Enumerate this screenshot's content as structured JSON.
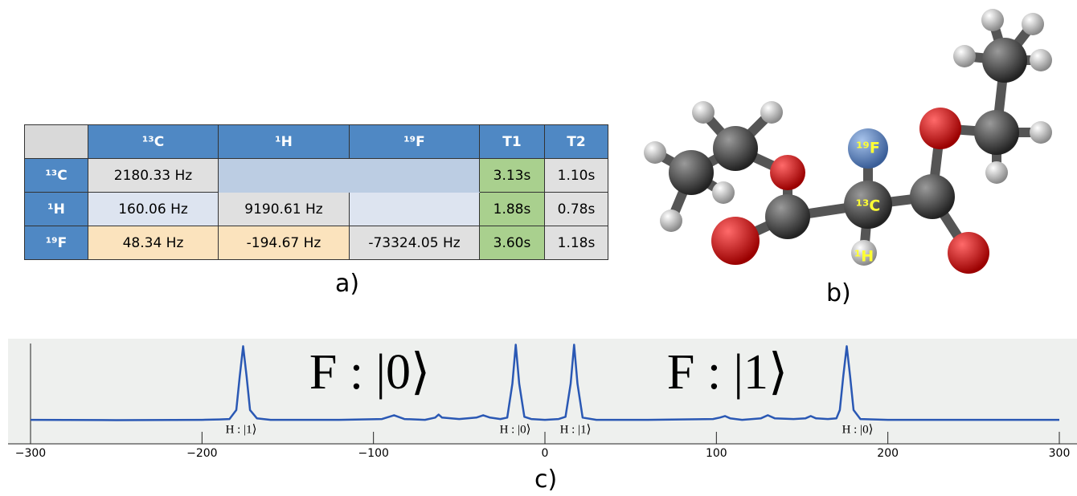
{
  "table": {
    "header": [
      "¹³C",
      "¹H",
      "¹⁹F",
      "T1",
      "T2"
    ],
    "rows": [
      {
        "label": "¹³C",
        "couplings": [
          "2180.33 Hz"
        ],
        "T1": "3.13s",
        "T2": "1.10s"
      },
      {
        "label": "¹H",
        "couplings": [
          "160.06 Hz",
          "9190.61 Hz"
        ],
        "T1": "1.88s",
        "T2": "0.78s"
      },
      {
        "label": "¹⁹F",
        "couplings": [
          "48.34 Hz",
          "-194.67 Hz",
          "-73324.05 Hz"
        ],
        "T1": "3.60s",
        "T2": "1.18s"
      }
    ]
  },
  "panel_labels": [
    "a)",
    "b)",
    "c)"
  ],
  "molecule": {
    "labels": [
      "¹⁹F",
      "¹³C",
      "¹H"
    ]
  },
  "chart_data": {
    "type": "line",
    "x": [
      -300,
      -250,
      -200,
      -190,
      -184,
      -180,
      -178,
      -176,
      -174,
      -172,
      -168,
      -160,
      -120,
      -95,
      -88,
      -82,
      -70,
      -64,
      -62,
      -60,
      -50,
      -40,
      -36,
      -32,
      -26,
      -22,
      -19,
      -17,
      -15,
      -12,
      -8,
      0,
      8,
      12,
      15,
      17,
      19,
      22,
      30,
      60,
      98,
      102,
      105,
      108,
      115,
      126,
      130,
      134,
      145,
      152,
      155,
      158,
      165,
      170,
      172,
      174,
      176,
      178,
      180,
      184,
      200,
      250,
      300
    ],
    "series": [
      {
        "color": "#2a58b4",
        "values": [
          0.02,
          0.015,
          0.02,
          0.025,
          0.03,
          0.15,
          0.6,
          1.0,
          0.6,
          0.15,
          0.04,
          0.02,
          0.02,
          0.03,
          0.08,
          0.03,
          0.02,
          0.05,
          0.09,
          0.05,
          0.03,
          0.05,
          0.08,
          0.05,
          0.03,
          0.05,
          0.5,
          1.02,
          0.5,
          0.06,
          0.03,
          0.02,
          0.03,
          0.06,
          0.5,
          1.02,
          0.5,
          0.05,
          0.02,
          0.02,
          0.03,
          0.05,
          0.07,
          0.04,
          0.02,
          0.04,
          0.08,
          0.04,
          0.03,
          0.04,
          0.07,
          0.04,
          0.03,
          0.04,
          0.15,
          0.6,
          1.0,
          0.6,
          0.15,
          0.03,
          0.02,
          0.02,
          0.02
        ]
      }
    ],
    "xlim": [
      -300,
      300
    ],
    "ylim": [
      -0.3,
      1.1
    ],
    "xticks": [
      {
        "value": -300,
        "label": "−300"
      },
      {
        "value": -200,
        "label": "−200"
      },
      {
        "value": -100,
        "label": "−100"
      },
      0,
      100,
      200,
      300
    ],
    "annotations": [
      "F : |0⟩",
      "F : |1⟩",
      "H : |1⟩",
      "H : |0⟩",
      "H : |1⟩",
      "H : |0⟩"
    ]
  }
}
